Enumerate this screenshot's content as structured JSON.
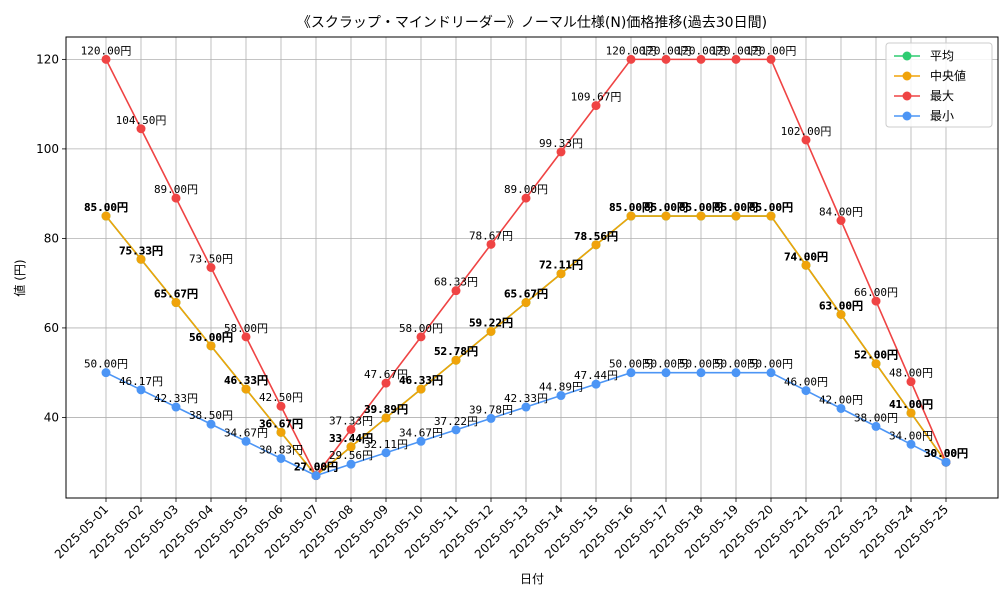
{
  "chart_data": {
    "type": "line",
    "title": "《スクラップ・マインドリーダー》ノーマル仕様(N)価格推移(過去30日間)",
    "xlabel": "日付",
    "ylabel": "値 (円)",
    "ylim": [
      22,
      125
    ],
    "yticks": [
      40,
      60,
      80,
      100,
      120
    ],
    "grid": true,
    "legend_position": "top-right",
    "label_suffix": "円",
    "categories": [
      "2025-05-01",
      "2025-05-02",
      "2025-05-03",
      "2025-05-04",
      "2025-05-05",
      "2025-05-06",
      "2025-05-07",
      "2025-05-08",
      "2025-05-09",
      "2025-05-10",
      "2025-05-11",
      "2025-05-12",
      "2025-05-13",
      "2025-05-14",
      "2025-05-15",
      "2025-05-16",
      "2025-05-17",
      "2025-05-18",
      "2025-05-19",
      "2025-05-20",
      "2025-05-21",
      "2025-05-22",
      "2025-05-23",
      "2025-05-24",
      "2025-05-25"
    ],
    "series": [
      {
        "name": "平均",
        "color": "#2ecc71",
        "values": [
          85.0,
          75.33,
          65.67,
          56.0,
          46.33,
          36.67,
          27.0,
          33.44,
          39.89,
          46.33,
          52.78,
          59.22,
          65.67,
          72.11,
          78.56,
          85.0,
          85.0,
          85.0,
          85.0,
          85.0,
          74.0,
          63.0,
          52.0,
          41.0,
          30.0
        ]
      },
      {
        "name": "中央値",
        "color": "#f0a30a",
        "values": [
          85.0,
          75.33,
          65.67,
          56.0,
          46.33,
          36.67,
          27.0,
          33.44,
          39.89,
          46.33,
          52.78,
          59.22,
          65.67,
          72.11,
          78.56,
          85.0,
          85.0,
          85.0,
          85.0,
          85.0,
          74.0,
          63.0,
          52.0,
          41.0,
          30.0
        ]
      },
      {
        "name": "最大",
        "color": "#ef4444",
        "values": [
          120.0,
          104.5,
          89.0,
          73.5,
          58.0,
          42.5,
          27.0,
          37.33,
          47.67,
          58.0,
          68.33,
          78.67,
          89.0,
          99.33,
          109.67,
          120.0,
          120.0,
          120.0,
          120.0,
          120.0,
          102.0,
          84.0,
          66.0,
          48.0,
          30.0
        ]
      },
      {
        "name": "最小",
        "color": "#4c95f5",
        "values": [
          50.0,
          46.17,
          42.33,
          38.5,
          34.67,
          30.83,
          27.0,
          29.56,
          32.11,
          34.67,
          37.22,
          39.78,
          42.33,
          44.89,
          47.44,
          50.0,
          50.0,
          50.0,
          50.0,
          50.0,
          46.0,
          42.0,
          38.0,
          34.0,
          30.0
        ]
      }
    ]
  }
}
